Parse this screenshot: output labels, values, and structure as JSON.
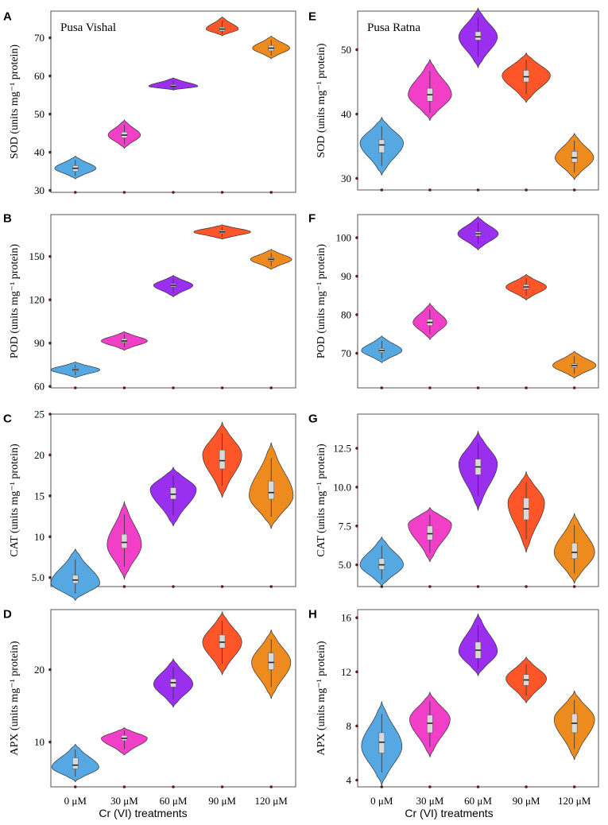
{
  "chart_data": {
    "type": "violin",
    "categories": [
      "0 μM",
      "30 μM",
      "60 μM",
      "90 μM",
      "120 μM"
    ],
    "xlabel": "Cr (VI) treatments",
    "colors": [
      "#55A8E2",
      "#F23FC8",
      "#9B2FEF",
      "#FF5629",
      "#EE8B1E"
    ],
    "panels": [
      {
        "letter": "A",
        "cultivar": "Pusa Vishal",
        "ylabel": "SOD (units mg⁻¹ protein)",
        "ylim": [
          29.5,
          77
        ],
        "ticks": [
          30,
          40,
          50,
          60,
          70
        ],
        "median": [
          35.8,
          44.5,
          57.3,
          72.3,
          67.3
        ],
        "q1": [
          35,
          43.8,
          57.1,
          71.8,
          66.6
        ],
        "q3": [
          36.5,
          45.3,
          57.7,
          72.8,
          68
        ],
        "ymin": [
          33,
          41,
          56.3,
          70.5,
          64.5
        ],
        "ymax": [
          39,
          48.5,
          59.5,
          75.5,
          70.5
        ],
        "mode": [
          35.8,
          44.5,
          57.3,
          72.3,
          67.3
        ],
        "halfwidth": [
          0.42,
          0.33,
          0.5,
          0.33,
          0.38
        ]
      },
      {
        "letter": "B",
        "cultivar": "",
        "ylabel": "POD (units mg⁻¹ protein)",
        "ylim": [
          59,
          179
        ],
        "ticks": [
          60,
          90,
          120,
          150
        ],
        "median": [
          71.5,
          91.5,
          130,
          167,
          148
        ],
        "q1": [
          70.5,
          90.5,
          129,
          166,
          147
        ],
        "q3": [
          72.5,
          93,
          131,
          168,
          149
        ],
        "ymin": [
          66,
          85,
          122,
          162,
          141
        ],
        "ymax": [
          77,
          98,
          137,
          172,
          155
        ],
        "mode": [
          71.5,
          91.5,
          130,
          167,
          148
        ],
        "halfwidth": [
          0.5,
          0.47,
          0.4,
          0.58,
          0.42
        ]
      },
      {
        "letter": "C",
        "cultivar": "",
        "ylabel": "CAT (units mg⁻¹ protein)",
        "ylim": [
          3.9,
          25
        ],
        "ticks": [
          5.0,
          10,
          15,
          20,
          25
        ],
        "median": [
          4.7,
          9.3,
          15.2,
          19.3,
          15.4
        ],
        "q1": [
          4.3,
          8.6,
          14.6,
          18.3,
          14.6
        ],
        "q3": [
          5.3,
          10.3,
          16.0,
          20.6,
          16.8
        ],
        "ymin": [
          2.2,
          4.8,
          11.3,
          14.8,
          11.0
        ],
        "ymax": [
          8.5,
          14.3,
          18.5,
          24,
          21.5
        ],
        "mode": [
          4.3,
          9.0,
          15.8,
          20.0,
          15.0
        ],
        "halfwidth": [
          0.5,
          0.35,
          0.47,
          0.4,
          0.45
        ]
      },
      {
        "letter": "D",
        "cultivar": "",
        "ylabel": "APX (units mg⁻¹ protein)",
        "ylim": [
          3.8,
          28.3
        ],
        "ticks": [
          10,
          20
        ],
        "median": [
          6.8,
          10.5,
          18.2,
          23.8,
          21.0
        ],
        "q1": [
          6.3,
          10.2,
          17.6,
          23.0,
          20.0
        ],
        "q3": [
          7.8,
          10.9,
          18.7,
          24.8,
          22.3
        ],
        "ymin": [
          4.5,
          8.2,
          14.8,
          19.3,
          16.0
        ],
        "ymax": [
          9.7,
          12.0,
          21.5,
          28.0,
          25.5
        ],
        "mode": [
          6.5,
          10.5,
          18.0,
          23.8,
          21.0
        ],
        "halfwidth": [
          0.48,
          0.47,
          0.4,
          0.4,
          0.4
        ]
      },
      {
        "letter": "E",
        "cultivar": "Pusa Ratna",
        "ylabel": "SOD (units mg⁻¹ protein)",
        "ylim": [
          28.2,
          56
        ],
        "ticks": [
          30,
          40,
          50
        ],
        "median": [
          35.2,
          43.0,
          52.0,
          45.8,
          33.2
        ],
        "q1": [
          34.0,
          42.0,
          51.5,
          45.0,
          32.5
        ],
        "q3": [
          36.0,
          44.0,
          52.8,
          46.8,
          34.2
        ],
        "ymin": [
          30.5,
          39.0,
          47.2,
          41.8,
          29.8
        ],
        "ymax": [
          39.5,
          48.5,
          56.5,
          49.5,
          37.0
        ],
        "mode": [
          35.5,
          43.0,
          52.0,
          46.0,
          33.2
        ],
        "halfwidth": [
          0.45,
          0.45,
          0.4,
          0.5,
          0.4
        ]
      },
      {
        "letter": "F",
        "cultivar": "",
        "ylabel": "POD (units mg⁻¹ protein)",
        "ylim": [
          61,
          106
        ],
        "ticks": [
          70,
          80,
          90,
          100
        ],
        "median": [
          70.7,
          78.0,
          101.0,
          87.2,
          66.8
        ],
        "q1": [
          70.2,
          77.2,
          100.5,
          86.7,
          66.3
        ],
        "q3": [
          71.2,
          78.8,
          101.5,
          87.8,
          67.3
        ],
        "ymin": [
          67.5,
          73.5,
          96.8,
          83.8,
          63.5
        ],
        "ymax": [
          74.5,
          83.0,
          105.5,
          90.5,
          70.5
        ],
        "mode": [
          70.7,
          78.0,
          101.0,
          87.2,
          66.8
        ],
        "halfwidth": [
          0.42,
          0.35,
          0.42,
          0.42,
          0.45
        ]
      },
      {
        "letter": "G",
        "cultivar": "",
        "ylabel": "CAT (units mg⁻¹ protein)",
        "ylim": [
          3.6,
          14.7
        ],
        "ticks": [
          5.0,
          7.5,
          10.0,
          12.5
        ],
        "median": [
          5.0,
          7.0,
          11.3,
          8.6,
          5.8
        ],
        "q1": [
          4.7,
          6.6,
          10.8,
          7.9,
          5.4
        ],
        "q3": [
          5.4,
          7.5,
          11.8,
          9.3,
          6.4
        ],
        "ymin": [
          3.6,
          5.2,
          8.5,
          5.8,
          3.8
        ],
        "ymax": [
          6.8,
          8.7,
          13.6,
          11.0,
          8.3
        ],
        "mode": [
          5.0,
          7.6,
          11.5,
          9.0,
          5.8
        ],
        "halfwidth": [
          0.45,
          0.45,
          0.4,
          0.38,
          0.42
        ]
      },
      {
        "letter": "H",
        "cultivar": "",
        "ylabel": "APX (units mg⁻¹ protein)",
        "ylim": [
          3.5,
          16.6
        ],
        "ticks": [
          4,
          8,
          12,
          16
        ],
        "median": [
          6.8,
          8.2,
          13.6,
          11.4,
          8.2
        ],
        "q1": [
          6.0,
          7.5,
          13.0,
          11.0,
          7.5
        ],
        "q3": [
          7.5,
          8.8,
          14.2,
          11.8,
          8.9
        ],
        "ymin": [
          3.6,
          5.7,
          11.7,
          9.7,
          5.5
        ],
        "ymax": [
          9.8,
          10.5,
          16.3,
          13.1,
          10.6
        ],
        "mode": [
          6.5,
          8.5,
          13.5,
          11.5,
          8.5
        ],
        "halfwidth": [
          0.42,
          0.42,
          0.4,
          0.42,
          0.42
        ]
      }
    ]
  }
}
